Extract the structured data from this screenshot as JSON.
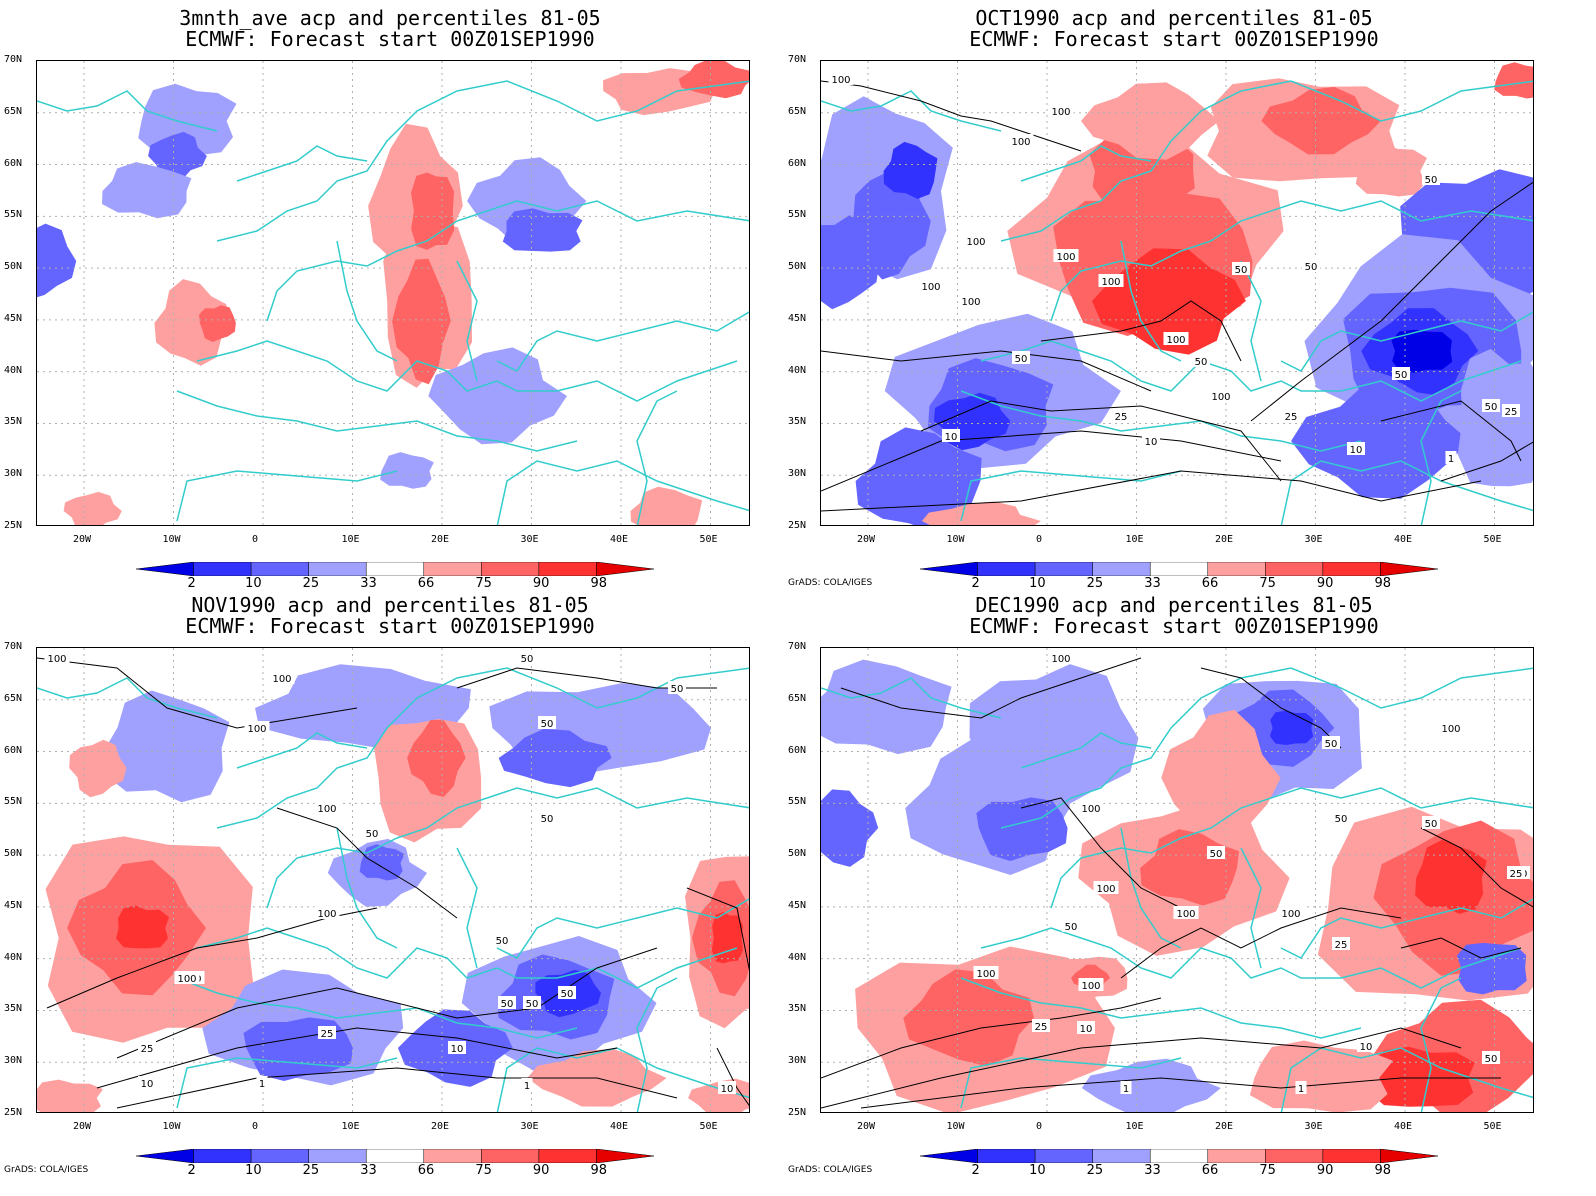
{
  "panels": [
    {
      "title_line1": "3mnth_ave acp and percentiles 81-05",
      "title_line2": "ECMWF: Forecast start 00Z01SEP1990",
      "credit": ""
    },
    {
      "title_line1": "OCT1990 acp and percentiles 81-05",
      "title_line2": "ECMWF: Forecast start 00Z01SEP1990",
      "credit": "GrADS: COLA/IGES"
    },
    {
      "title_line1": "NOV1990 acp and percentiles 81-05",
      "title_line2": "ECMWF: Forecast start 00Z01SEP1990",
      "credit": "GrADS: COLA/IGES"
    },
    {
      "title_line1": "DEC1990 acp and percentiles 81-05",
      "title_line2": "ECMWF: Forecast start 00Z01SEP1990",
      "credit": "GrADS: COLA/IGES"
    }
  ],
  "lat_labels": [
    "70N",
    "65N",
    "60N",
    "55N",
    "50N",
    "45N",
    "40N",
    "35N",
    "30N",
    "25N"
  ],
  "lon_labels": [
    "20W",
    "10W",
    "0",
    "10E",
    "20E",
    "30E",
    "40E",
    "50E"
  ],
  "colorbar": {
    "ticks": [
      "2",
      "10",
      "25",
      "33",
      "66",
      "75",
      "90",
      "98"
    ],
    "colors": [
      "#0000e6",
      "#3232ff",
      "#6464ff",
      "#a0a0ff",
      "#ffffff",
      "#ffa0a0",
      "#ff6464",
      "#ff3232",
      "#e60000"
    ]
  },
  "map_colors": {
    "coast": "#33cccc",
    "contour": "#000000",
    "grid": "#b0b0b0"
  },
  "contour_labels": [
    [],
    [
      "100",
      "100",
      "100",
      "100",
      "100",
      "100",
      "100",
      "100",
      "100",
      "100",
      "50",
      "50",
      "50",
      "50",
      "50",
      "50",
      "50",
      "25",
      "25",
      "25",
      "10",
      "10",
      "10",
      "1"
    ],
    [
      "100",
      "100",
      "100",
      "100",
      "100",
      "100",
      "50",
      "50",
      "50",
      "50",
      "50",
      "50",
      "50",
      "50",
      "50",
      "25",
      "25",
      "10",
      "10",
      "1",
      "1",
      "100",
      "10",
      "25"
    ],
    [
      "100",
      "100",
      "100",
      "100",
      "100",
      "100",
      "100",
      "100",
      "50",
      "50",
      "50",
      "50",
      "50",
      "50",
      "50",
      "25",
      "25",
      "25",
      "10",
      "10",
      "1",
      "1",
      "50"
    ]
  ]
}
